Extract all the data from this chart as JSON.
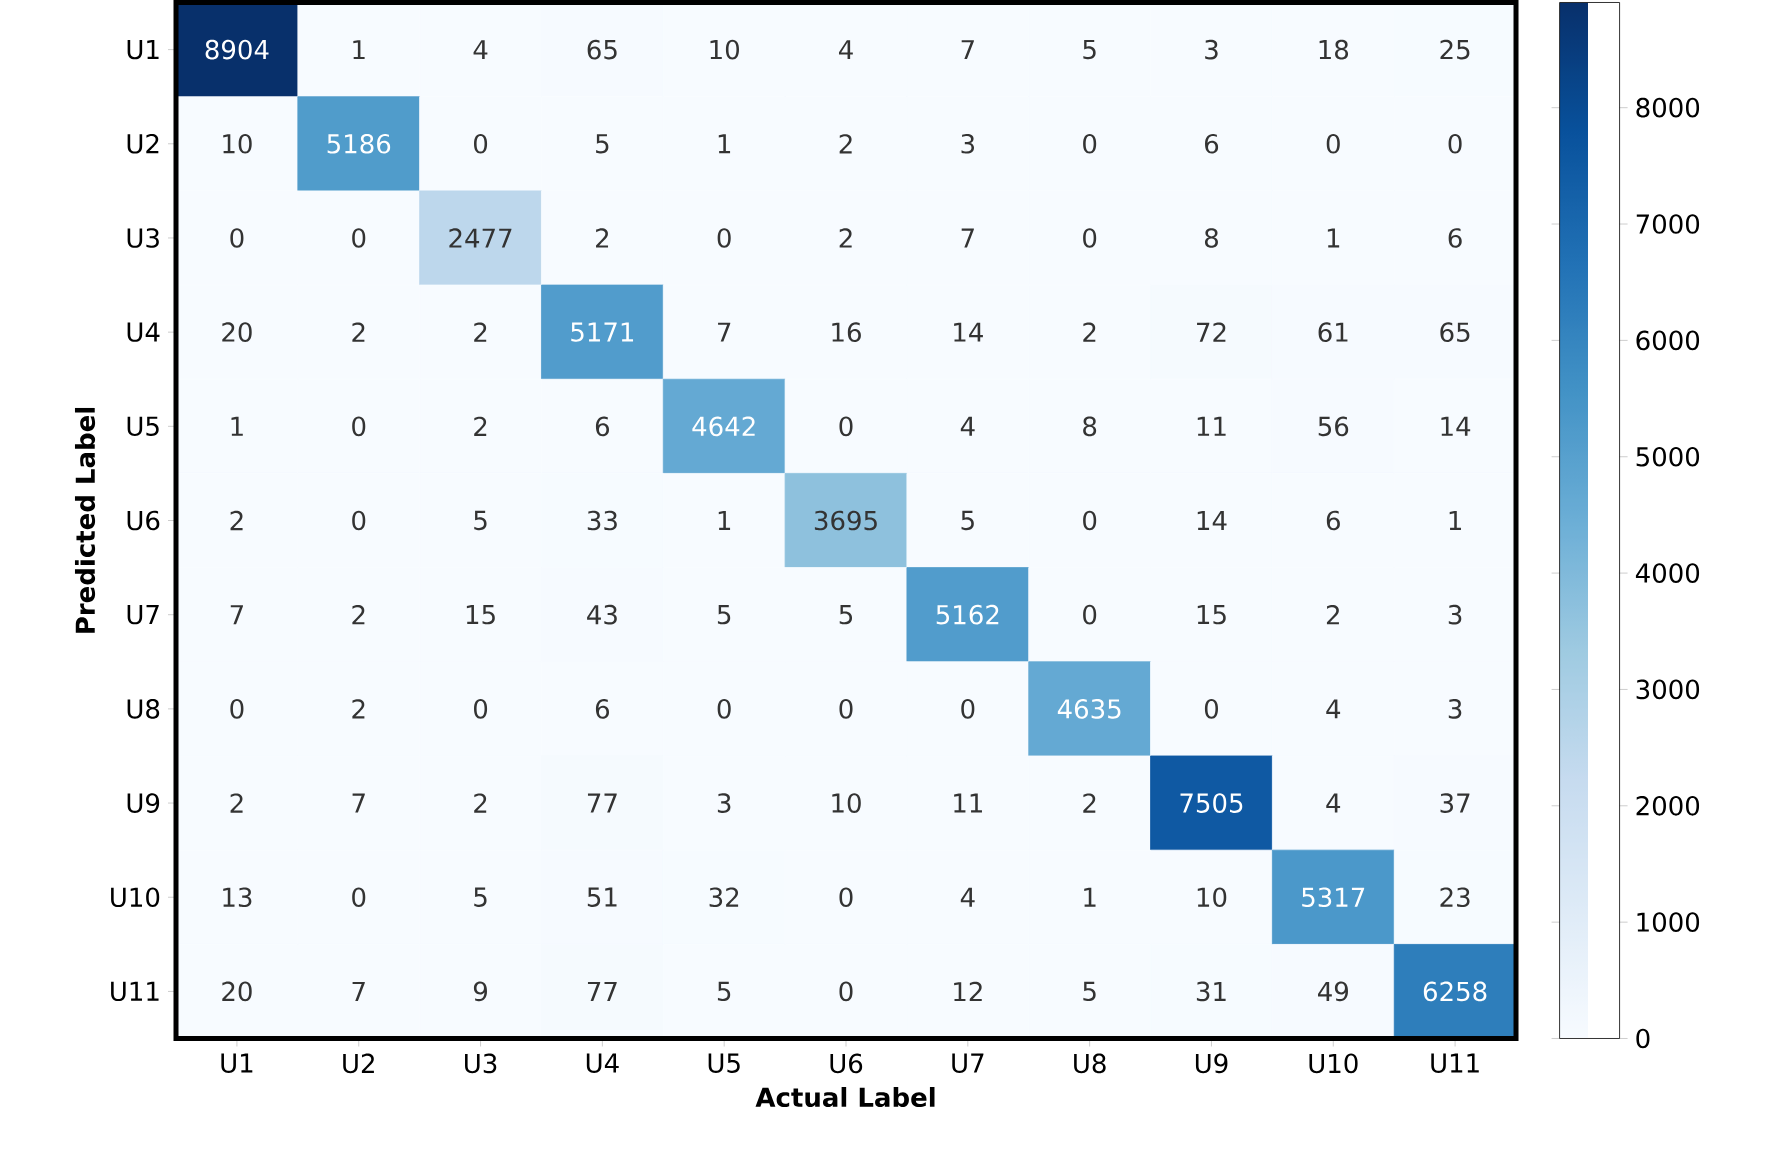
{
  "chart_data": {
    "type": "heatmap",
    "xlabel": "Actual Label",
    "ylabel": "Predicted Label",
    "categories": [
      "U1",
      "U2",
      "U3",
      "U4",
      "U5",
      "U6",
      "U7",
      "U8",
      "U9",
      "U10",
      "U11"
    ],
    "y_categories": [
      "U1",
      "U2",
      "U3",
      "U4",
      "U5",
      "U6",
      "U7",
      "U8",
      "U9",
      "U10",
      "U11"
    ],
    "cells": [
      [
        8904,
        1,
        4,
        65,
        10,
        4,
        7,
        5,
        3,
        18,
        25
      ],
      [
        10,
        5186,
        0,
        5,
        1,
        2,
        3,
        0,
        6,
        0,
        0
      ],
      [
        0,
        0,
        2477,
        2,
        0,
        2,
        7,
        0,
        8,
        1,
        6
      ],
      [
        20,
        2,
        2,
        5171,
        7,
        16,
        14,
        2,
        72,
        61,
        65
      ],
      [
        1,
        0,
        2,
        6,
        4642,
        0,
        4,
        8,
        11,
        56,
        14
      ],
      [
        2,
        0,
        5,
        33,
        1,
        3695,
        5,
        0,
        14,
        6,
        1
      ],
      [
        7,
        2,
        15,
        43,
        5,
        5,
        5162,
        0,
        15,
        2,
        3
      ],
      [
        0,
        2,
        0,
        6,
        0,
        0,
        0,
        4635,
        0,
        4,
        3
      ],
      [
        2,
        7,
        2,
        77,
        3,
        10,
        11,
        2,
        7505,
        4,
        37
      ],
      [
        13,
        0,
        5,
        51,
        32,
        0,
        4,
        1,
        10,
        5317,
        23
      ],
      [
        20,
        7,
        9,
        77,
        5,
        0,
        12,
        5,
        31,
        49,
        6258
      ]
    ],
    "data_labels": true,
    "clim": [
      0,
      8904
    ],
    "cticks": [
      0,
      1000,
      2000,
      3000,
      4000,
      5000,
      6000,
      7000,
      8000
    ]
  }
}
